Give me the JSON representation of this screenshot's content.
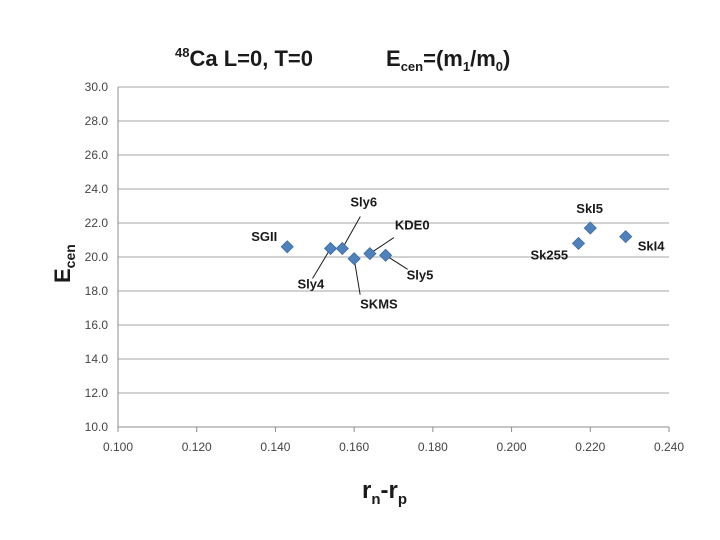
{
  "header": {
    "title_left_sup": "48",
    "title_left_main": "Ca L=0, T=0",
    "title_right_main": "E",
    "title_right_sub": "cen",
    "title_right_rest1": "=(m",
    "title_right_sub1": "1",
    "title_right_rest2": "/m",
    "title_right_sub0": "0",
    "title_right_rest3": ")"
  },
  "axes": {
    "ylabel_main": "E",
    "ylabel_sub": "cen",
    "xlabel_a": "r",
    "xlabel_a_sub": "n",
    "xlabel_mid": "-r",
    "xlabel_b_sub": "p"
  },
  "chart_data": {
    "type": "scatter",
    "title": "48Ca L=0, T=0   Ecen=(m1/m0)",
    "xlabel": "rn-rp",
    "ylabel": "Ecen",
    "xlim": [
      0.1,
      0.24
    ],
    "ylim": [
      10.0,
      30.0
    ],
    "xticks": [
      "0.100",
      "0.120",
      "0.140",
      "0.160",
      "0.180",
      "0.200",
      "0.220",
      "0.240"
    ],
    "yticks": [
      "10.0",
      "12.0",
      "14.0",
      "16.0",
      "18.0",
      "20.0",
      "22.0",
      "24.0",
      "26.0",
      "28.0",
      "30.0"
    ],
    "grid": "horizontal",
    "marker_color": "#4f81bd",
    "points": [
      {
        "label": "SGII",
        "x": 0.143,
        "y": 20.6
      },
      {
        "label": "Sly4",
        "x": 0.154,
        "y": 20.5
      },
      {
        "label": "Sly6",
        "x": 0.157,
        "y": 20.5
      },
      {
        "label": "SKMS",
        "x": 0.16,
        "y": 19.9
      },
      {
        "label": "KDE0",
        "x": 0.164,
        "y": 20.2
      },
      {
        "label": "Sly5",
        "x": 0.168,
        "y": 20.1
      },
      {
        "label": "Sk255",
        "x": 0.217,
        "y": 20.8
      },
      {
        "label": "SkI5",
        "x": 0.22,
        "y": 21.7
      },
      {
        "label": "SkI4",
        "x": 0.229,
        "y": 21.2
      }
    ]
  }
}
